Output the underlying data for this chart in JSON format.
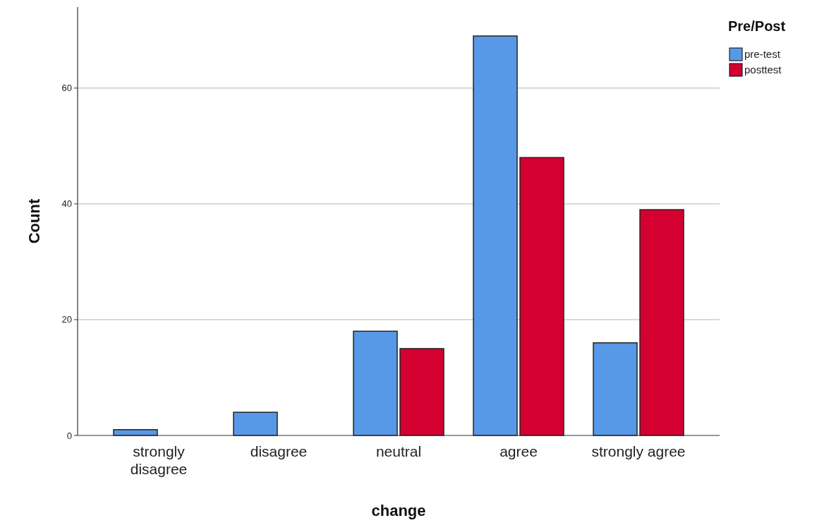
{
  "chart_data": {
    "type": "bar",
    "xlabel": "change",
    "ylabel": "Count",
    "legend_title": "Pre/Post",
    "categories": [
      "strongly disagree",
      "disagree",
      "neutral",
      "agree",
      "strongly agree"
    ],
    "series": [
      {
        "name": "pre-test",
        "color": "#5799e6",
        "values": [
          1,
          4,
          18,
          69,
          16
        ]
      },
      {
        "name": "posttest",
        "color": "#d4002f",
        "values": [
          null,
          null,
          15,
          48,
          39
        ]
      }
    ],
    "ylim": [
      0,
      74
    ],
    "yticks": [
      0,
      20,
      40,
      60
    ],
    "grid": "y",
    "legend": "top right"
  }
}
